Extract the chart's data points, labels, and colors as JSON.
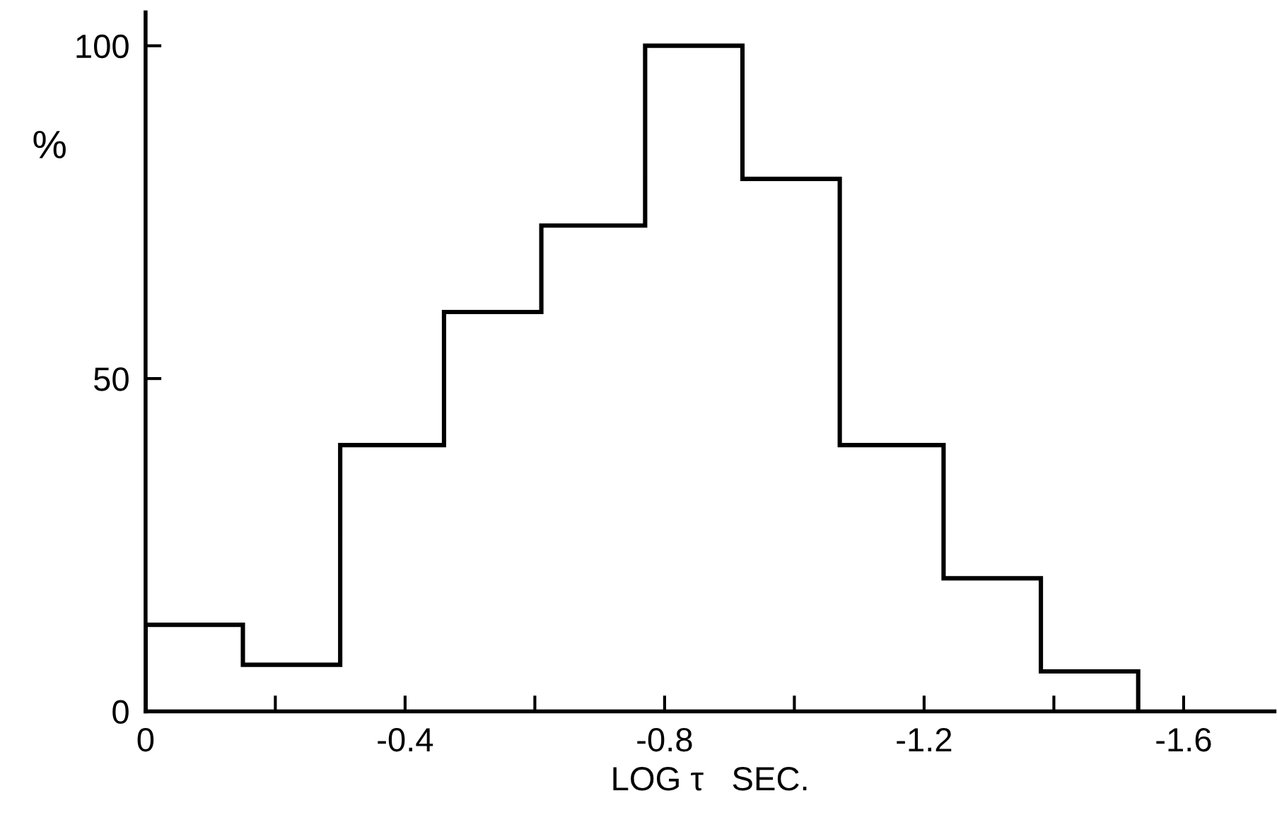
{
  "chart_data": {
    "type": "histogram",
    "xlabel": "LOG τ   SEC.",
    "ylabel": "%",
    "bins": [
      0,
      -0.15,
      -0.3,
      -0.46,
      -0.61,
      -0.77,
      -0.92,
      -1.07,
      -1.23,
      -1.38,
      -1.53
    ],
    "values": [
      13,
      7,
      40,
      60,
      73,
      100,
      80,
      40,
      20,
      6
    ],
    "color": "#000000",
    "xlim": [
      0,
      -1.74
    ],
    "xticks": [
      0,
      {
        "value": -0.2,
        "label": null
      },
      -0.4,
      {
        "value": -0.6,
        "label": null
      },
      -0.8,
      {
        "value": -1.0,
        "label": null
      },
      -1.2,
      {
        "value": -1.4,
        "label": null
      },
      -1.6
    ],
    "ylim": [
      0,
      105
    ],
    "yticks": [
      0,
      50,
      100
    ],
    "grid": false,
    "legend": false
  }
}
